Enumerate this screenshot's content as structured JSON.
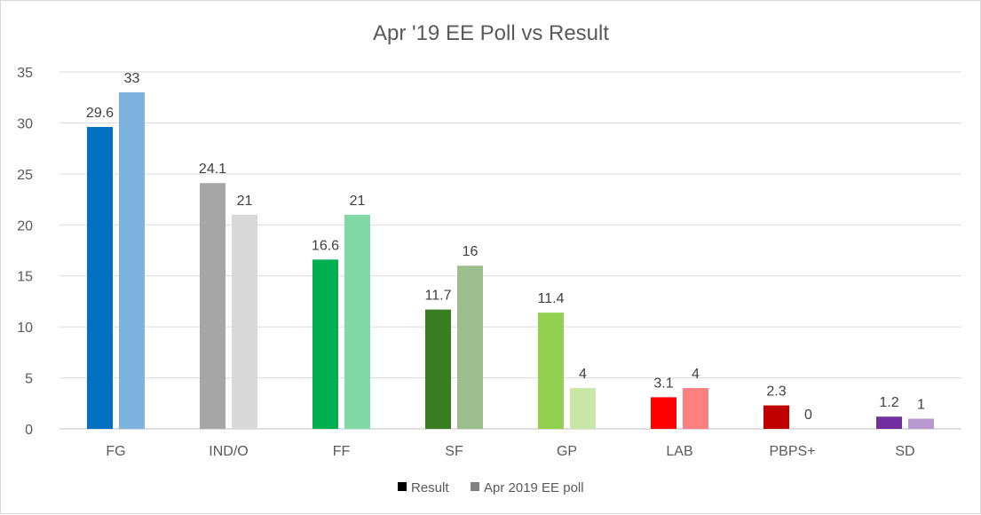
{
  "chart_data": {
    "type": "bar",
    "title": "Apr '19 EE Poll vs Result",
    "xlabel": "",
    "ylabel": "",
    "ylim": [
      0,
      35
    ],
    "yticks": [
      0,
      5,
      10,
      15,
      20,
      25,
      30,
      35
    ],
    "grid": true,
    "legend_position": "bottom",
    "categories": [
      "FG",
      "IND/O",
      "FF",
      "SF",
      "GP",
      "LAB",
      "PBPS+",
      "SD"
    ],
    "series": [
      {
        "name": "Result",
        "legend_color": "#000000",
        "values": [
          29.6,
          24.1,
          16.6,
          11.7,
          11.4,
          3.1,
          2.3,
          1.2
        ],
        "colors": [
          "#0070C0",
          "#A6A6A6",
          "#00B050",
          "#3A7D22",
          "#92D050",
          "#FF0000",
          "#C00000",
          "#7030A0"
        ]
      },
      {
        "name": "Apr 2019 EE poll",
        "legend_color": "#808080",
        "values": [
          33,
          21,
          21,
          16,
          4,
          4,
          0,
          1
        ],
        "colors": [
          "#7FB3DF",
          "#D9D9D9",
          "#80D9A7",
          "#9BBE8C",
          "#C9E8A7",
          "#FF8080",
          "#E08080",
          "#B79AD2"
        ]
      }
    ]
  }
}
